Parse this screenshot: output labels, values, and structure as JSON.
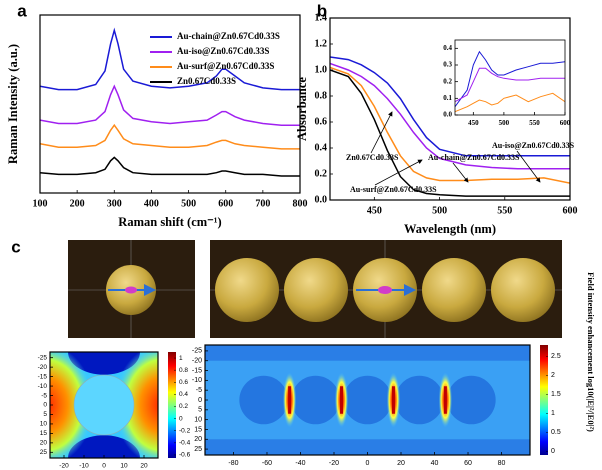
{
  "chart_data": [
    {
      "type": "line",
      "panel_label": "a",
      "xlabel": "Raman shift (cm⁻¹)",
      "ylabel": "Raman Intensity (a.u.)",
      "legend": "upper right",
      "x": [
        100,
        150,
        200,
        250,
        275,
        290,
        300,
        310,
        325,
        350,
        400,
        450,
        500,
        550,
        575,
        590,
        600,
        625,
        650,
        700,
        750,
        800
      ],
      "xlim": [
        100,
        800
      ],
      "xticks": [
        100,
        200,
        300,
        400,
        500,
        600,
        700,
        800
      ],
      "ylim": [
        0,
        10.5
      ],
      "series": [
        {
          "name": "Au-chain@Zn0.67Cd0.33S",
          "color": "#1a1ad6",
          "values": [
            6.3,
            6.1,
            6.1,
            6.4,
            7.2,
            8.8,
            9.6,
            8.8,
            7.3,
            6.6,
            6.3,
            6.2,
            6.3,
            6.5,
            6.9,
            7.3,
            7.3,
            6.9,
            6.5,
            6.2,
            6.1,
            6.1
          ]
        },
        {
          "name": "Au-iso@Zn0.67Cd0.33S",
          "color": "#a020f0",
          "values": [
            4.3,
            4.1,
            4.1,
            4.3,
            4.8,
            5.8,
            6.3,
            5.8,
            4.9,
            4.4,
            4.2,
            4.1,
            4.2,
            4.3,
            4.6,
            4.8,
            4.8,
            4.5,
            4.3,
            4.1,
            4.0,
            4.0
          ]
        },
        {
          "name": "Au-surf@Zn0.67Cd0.33S",
          "color": "#ff8c1a",
          "values": [
            2.9,
            2.7,
            2.7,
            2.8,
            3.1,
            3.7,
            4.0,
            3.7,
            3.2,
            2.9,
            2.8,
            2.7,
            2.7,
            2.8,
            3.0,
            3.1,
            3.1,
            2.9,
            2.8,
            2.7,
            2.6,
            2.6
          ]
        },
        {
          "name": "Zn0.67Cd0.33S",
          "color": "#000000",
          "values": [
            1.2,
            1.1,
            1.1,
            1.2,
            1.4,
            1.9,
            2.1,
            1.9,
            1.5,
            1.2,
            1.1,
            1.1,
            1.1,
            1.1,
            1.2,
            1.3,
            1.3,
            1.2,
            1.1,
            1.1,
            1.0,
            1.0
          ]
        }
      ]
    },
    {
      "type": "line",
      "panel_label": "b",
      "xlabel": "Wavelength (nm)",
      "ylabel": "Absorbance",
      "legend": "inline",
      "x": [
        416,
        430,
        440,
        450,
        460,
        470,
        480,
        490,
        500,
        520,
        540,
        560,
        580,
        600
      ],
      "xlim": [
        416,
        600
      ],
      "xticks": [
        450,
        500,
        550,
        600
      ],
      "ylim": [
        0,
        1.4
      ],
      "yticks": [
        {
          "value": 0,
          "label": "0.0"
        },
        0.2,
        0.4,
        0.6,
        0.8,
        {
          "value": 1,
          "label": "1.0"
        },
        1.2,
        1.4
      ],
      "series": [
        {
          "name": "Au-chain@Zn0.67Cd0.33S",
          "color": "#1a1ad6",
          "values": [
            1.1,
            1.08,
            1.04,
            0.98,
            0.9,
            0.78,
            0.62,
            0.48,
            0.39,
            0.34,
            0.34,
            0.34,
            0.34,
            0.34
          ]
        },
        {
          "name": "Au-iso@Zn0.67Cd0.33S",
          "color": "#a020f0",
          "values": [
            1.05,
            1.0,
            0.95,
            0.88,
            0.78,
            0.66,
            0.52,
            0.4,
            0.32,
            0.27,
            0.25,
            0.24,
            0.24,
            0.24
          ]
        },
        {
          "name": "Zn0.67Cd0.33S",
          "color": "#000000",
          "values": [
            1.0,
            0.95,
            0.82,
            0.62,
            0.38,
            0.18,
            0.08,
            0.05,
            0.04,
            0.03,
            0.03,
            0.03,
            0.03,
            0.03
          ]
        },
        {
          "name": "Au-surf@Zn0.67Cd0.33S",
          "color": "#ff8c1a",
          "values": [
            1.02,
            0.97,
            0.88,
            0.72,
            0.52,
            0.34,
            0.22,
            0.17,
            0.15,
            0.15,
            0.16,
            0.16,
            0.17,
            0.13
          ]
        }
      ]
    },
    {
      "type": "line",
      "x": [
        420,
        440,
        450,
        460,
        470,
        480,
        490,
        500,
        520,
        540,
        560,
        580,
        600
      ],
      "xlim": [
        420,
        600
      ],
      "xticks": [
        450,
        500,
        550,
        600
      ],
      "ylim": [
        0,
        0.45
      ],
      "yticks": [
        {
          "value": 0,
          "label": "0.0"
        },
        0.1,
        0.2,
        0.3,
        0.4
      ],
      "series": [
        {
          "color": "#1a1ad6",
          "values": [
            0.05,
            0.15,
            0.3,
            0.38,
            0.33,
            0.27,
            0.24,
            0.24,
            0.27,
            0.29,
            0.31,
            0.31,
            0.32
          ]
        },
        {
          "color": "#a020f0",
          "values": [
            0.08,
            0.12,
            0.2,
            0.28,
            0.28,
            0.25,
            0.23,
            0.22,
            0.21,
            0.21,
            0.22,
            0.22,
            0.22
          ]
        },
        {
          "color": "#ff8c1a",
          "values": [
            0.02,
            0.05,
            0.07,
            0.09,
            0.08,
            0.06,
            0.07,
            0.1,
            0.12,
            0.08,
            0.11,
            0.13,
            0.08
          ]
        }
      ]
    },
    {
      "type": "heatmap",
      "panel_label": "c",
      "xlim": [
        -27,
        27
      ],
      "xticks": [
        -20,
        -10,
        0,
        10,
        20
      ],
      "ylim": [
        -28,
        28
      ],
      "yreversed": true,
      "yticks": [
        -25,
        -20,
        -15,
        -10,
        -5,
        0,
        5,
        10,
        15,
        20,
        25
      ],
      "clim": [
        -0.65,
        1.1
      ],
      "cticks": [
        1,
        0.8,
        0.6,
        0.4,
        0.2,
        0,
        -0.2,
        -0.4,
        -0.6
      ]
    },
    {
      "type": "heatmap",
      "colorbar_label": "Field  intensity  enhancement log10(|E|²/|E0|²)",
      "xlim": [
        -97,
        97
      ],
      "xticks": [
        -80,
        -60,
        -40,
        -20,
        0,
        20,
        40,
        60,
        80
      ],
      "ylim": [
        -28,
        28
      ],
      "yreversed": true,
      "yticks": [
        -25,
        -20,
        -15,
        -10,
        -5,
        0,
        5,
        10,
        15,
        20,
        25
      ],
      "clim": [
        -0.1,
        2.8
      ],
      "cticks": [
        2.5,
        2,
        1.5,
        1,
        0.5,
        0
      ]
    }
  ]
}
